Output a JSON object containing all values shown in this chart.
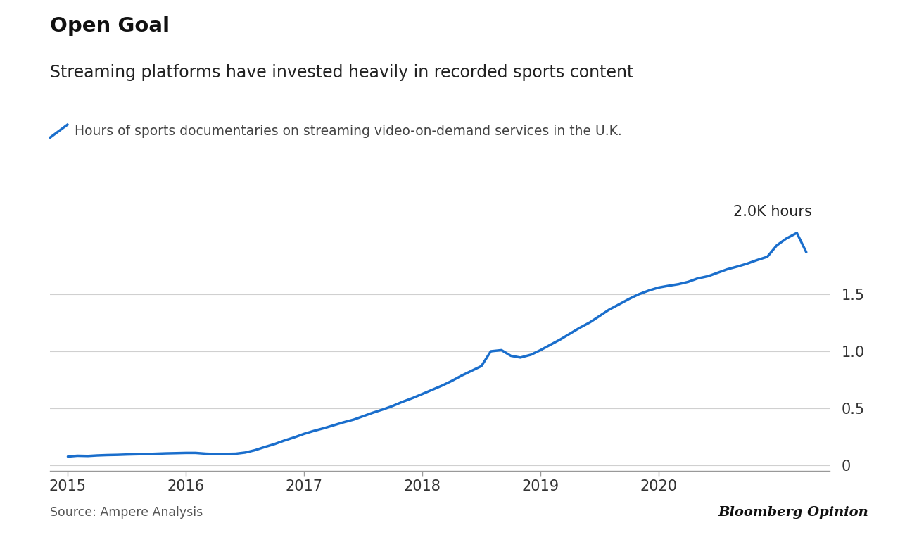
{
  "title": "Open Goal",
  "subtitle": "Streaming platforms have invested heavily in recorded sports content",
  "legend_label": "Hours of sports documentaries on streaming video-on-demand services in the U.K.",
  "source": "Source: Ampere Analysis",
  "branding": "Bloomberg Opinion",
  "line_color": "#1a6ecc",
  "background_color": "#ffffff",
  "annotation": "2.0K hours",
  "ytick_labels": [
    "0",
    "0.5",
    "1.0",
    "1.5"
  ],
  "ytick_values": [
    0,
    500,
    1000,
    1500
  ],
  "ylim": [
    -50,
    2300
  ],
  "x_values": [
    2015.0,
    2015.08,
    2015.17,
    2015.25,
    2015.33,
    2015.42,
    2015.5,
    2015.58,
    2015.67,
    2015.75,
    2015.83,
    2015.92,
    2016.0,
    2016.08,
    2016.17,
    2016.25,
    2016.33,
    2016.42,
    2016.5,
    2016.58,
    2016.67,
    2016.75,
    2016.83,
    2016.92,
    2017.0,
    2017.08,
    2017.17,
    2017.25,
    2017.33,
    2017.42,
    2017.5,
    2017.58,
    2017.67,
    2017.75,
    2017.83,
    2017.92,
    2018.0,
    2018.08,
    2018.17,
    2018.25,
    2018.33,
    2018.42,
    2018.5,
    2018.58,
    2018.67,
    2018.75,
    2018.83,
    2018.92,
    2019.0,
    2019.08,
    2019.17,
    2019.25,
    2019.33,
    2019.42,
    2019.5,
    2019.58,
    2019.67,
    2019.75,
    2019.83,
    2019.92,
    2020.0,
    2020.08,
    2020.17,
    2020.25,
    2020.33,
    2020.42,
    2020.5,
    2020.58,
    2020.67,
    2020.75,
    2020.83,
    2020.92,
    2021.0,
    2021.08,
    2021.17,
    2021.25
  ],
  "y_values": [
    75,
    82,
    80,
    85,
    88,
    90,
    93,
    95,
    97,
    100,
    103,
    105,
    107,
    107,
    100,
    97,
    98,
    100,
    110,
    130,
    160,
    185,
    215,
    245,
    275,
    300,
    325,
    350,
    375,
    400,
    430,
    460,
    490,
    520,
    555,
    590,
    625,
    660,
    700,
    740,
    785,
    830,
    870,
    1000,
    1010,
    960,
    945,
    970,
    1010,
    1055,
    1105,
    1155,
    1205,
    1255,
    1310,
    1365,
    1415,
    1460,
    1500,
    1535,
    1560,
    1575,
    1590,
    1610,
    1640,
    1660,
    1690,
    1720,
    1745,
    1770,
    1800,
    1830,
    1930,
    1990,
    2040,
    1870
  ],
  "xtick_values": [
    2015,
    2016,
    2017,
    2018,
    2019,
    2020
  ],
  "xtick_labels": [
    "2015",
    "2016",
    "2017",
    "2018",
    "2019",
    "2020"
  ]
}
